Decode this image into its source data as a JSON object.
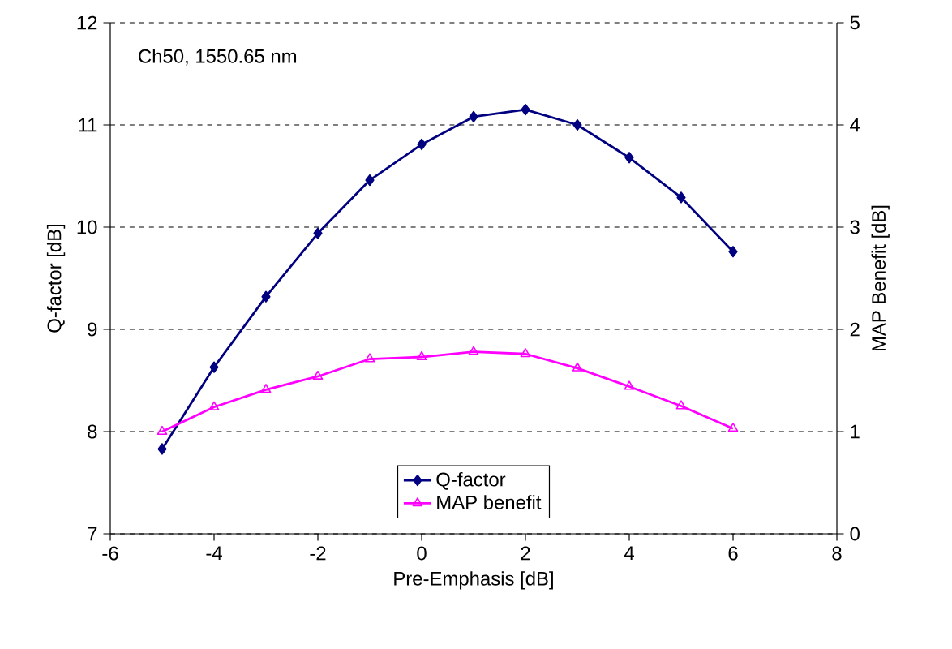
{
  "chart_data": {
    "type": "line",
    "xlabel": "Pre-Emphasis [dB]",
    "ylabel": "Q-factor [dB]",
    "y2label": "MAP Benefit [dB]",
    "annotations": [
      "Ch50, 1550.65 nm"
    ],
    "x": [
      -5,
      -4,
      -3,
      -2,
      -1,
      0,
      1,
      2,
      3,
      4,
      5,
      6
    ],
    "series": [
      {
        "name": "Q-factor",
        "color": "#000080",
        "marker": "diamond",
        "values": [
          7.83,
          8.63,
          9.32,
          9.94,
          10.46,
          10.81,
          11.08,
          11.15,
          11.0,
          10.68,
          10.29,
          9.76
        ]
      },
      {
        "name": "MAP benefit",
        "color": "#ff00ff",
        "marker": "triangle",
        "axis": "y2",
        "values": [
          1.0,
          1.24,
          1.41,
          1.54,
          1.71,
          1.73,
          1.78,
          1.76,
          1.62,
          1.44,
          1.25,
          1.03
        ]
      }
    ],
    "xlim": [
      -6,
      8
    ],
    "xticks": [
      -6,
      -4,
      -2,
      0,
      2,
      4,
      6,
      8
    ],
    "ylim": [
      7,
      12
    ],
    "yticks": [
      7,
      8,
      9,
      10,
      11,
      12
    ],
    "y2lim": [
      0,
      5
    ],
    "y2ticks": [
      0,
      1,
      2,
      3,
      4,
      5
    ],
    "grid": "y",
    "line_style": "solid",
    "legend": "bottom"
  }
}
